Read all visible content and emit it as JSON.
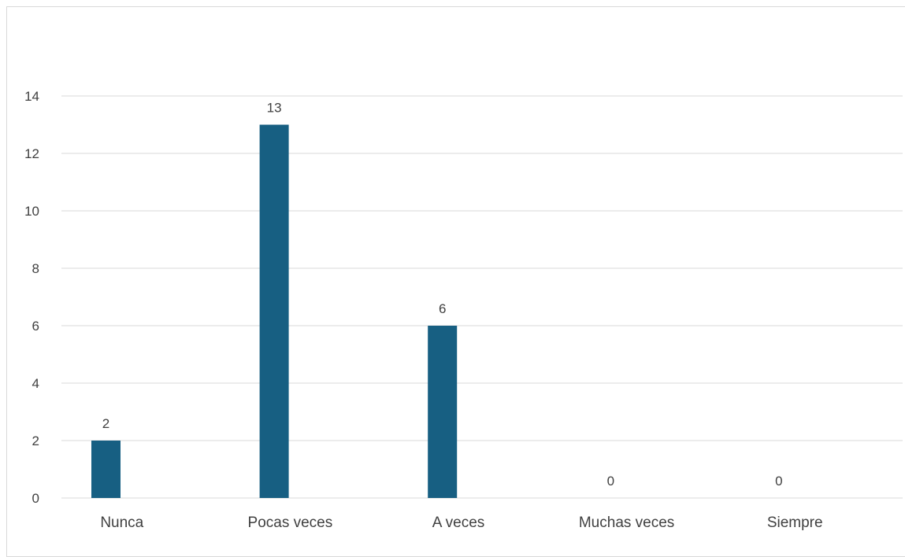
{
  "chart_data": {
    "type": "bar",
    "categories": [
      "Nunca",
      "Pocas veces",
      "A veces",
      "Muchas veces",
      "Siempre"
    ],
    "values": [
      2,
      13,
      6,
      0,
      0
    ],
    "ylim": [
      0,
      14
    ],
    "yticks": [
      0,
      2,
      4,
      6,
      8,
      10,
      12,
      14
    ],
    "grid": true,
    "data_labels": true,
    "bar_color": "#175f82",
    "gridline_color": "#d9d9d9"
  }
}
